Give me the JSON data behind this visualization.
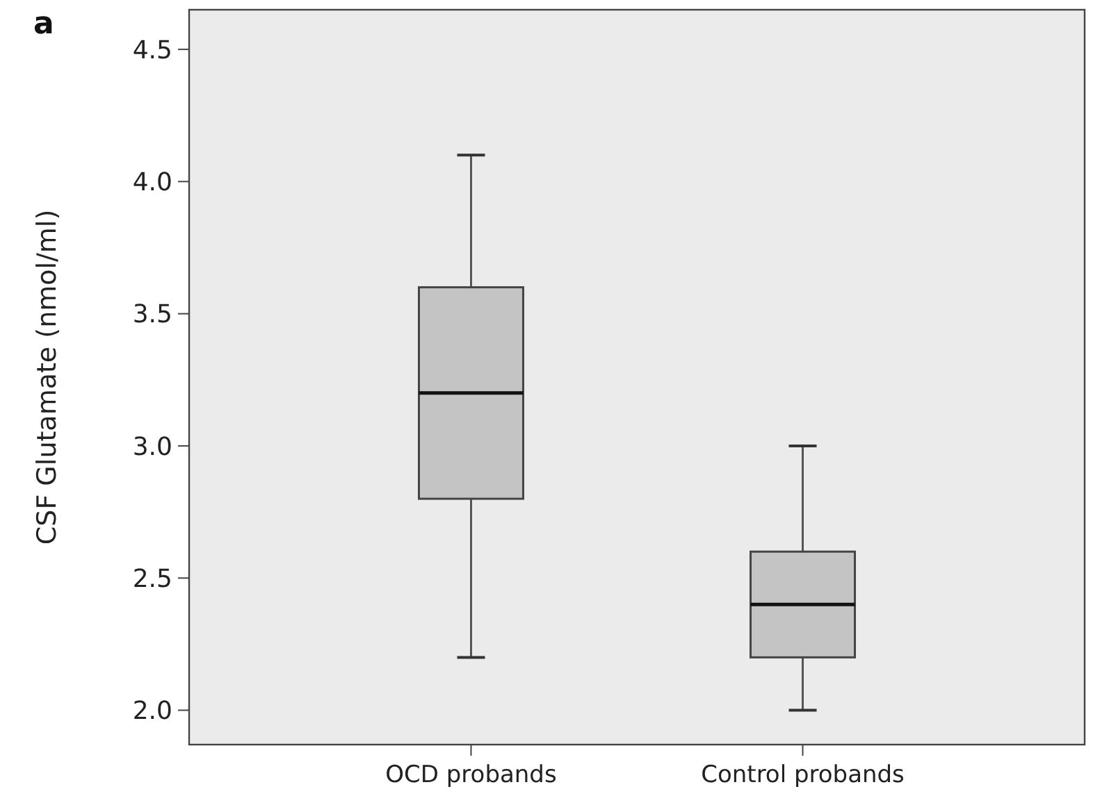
{
  "chart_data": {
    "type": "box",
    "title": "a",
    "ylabel": "CSF Glutamate (nmol/ml)",
    "categories": [
      "OCD probands",
      "Control probands"
    ],
    "boxes": [
      {
        "low": 2.2,
        "q1": 2.8,
        "median": 3.2,
        "q3": 3.6,
        "high": 4.1
      },
      {
        "low": 2.0,
        "q1": 2.2,
        "median": 2.4,
        "q3": 2.6,
        "high": 3.0
      }
    ],
    "color": "#c4c4c4",
    "ylim": [
      1.87,
      4.65
    ],
    "yticks": [
      {
        "value": 2,
        "label": "2.0"
      },
      {
        "value": 2.5,
        "label": "2.5"
      },
      {
        "value": 3,
        "label": "3.0"
      },
      {
        "value": 3.5,
        "label": "3.5"
      },
      {
        "value": 4,
        "label": "4.0"
      },
      {
        "value": 4.5,
        "label": "4.5"
      }
    ],
    "grid": false
  }
}
